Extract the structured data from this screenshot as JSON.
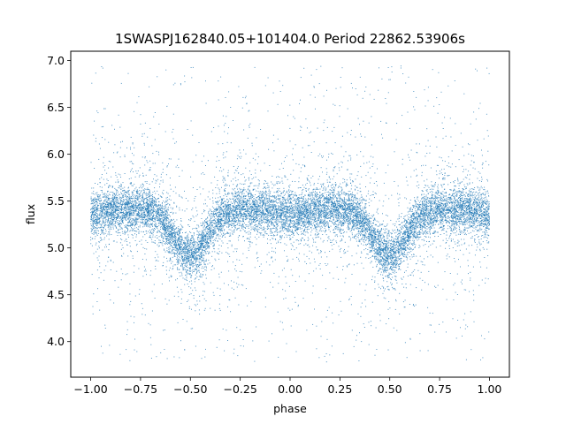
{
  "chart_data": {
    "type": "scatter",
    "title": "1SWASPJ162840.05+101404.0 Period 22862.53906s",
    "xlabel": "phase",
    "ylabel": "flux",
    "xlim": [
      -1.1,
      1.1
    ],
    "ylim": [
      3.62,
      7.1
    ],
    "grid": false,
    "legend": "none",
    "marker_color": "#1f77b4",
    "x_ticks": [
      -1.0,
      -0.75,
      -0.5,
      -0.25,
      0.0,
      0.25,
      0.5,
      0.75,
      1.0
    ],
    "x_tick_labels": [
      "−1.00",
      "−0.75",
      "−0.50",
      "−0.25",
      "0.00",
      "0.25",
      "0.50",
      "0.75",
      "1.00"
    ],
    "y_ticks": [
      4.0,
      4.5,
      5.0,
      5.5,
      6.0,
      6.5,
      7.0
    ],
    "y_tick_labels": [
      "4.0",
      "4.5",
      "5.0",
      "5.5",
      "6.0",
      "6.5",
      "7.0"
    ],
    "x_range": [
      -1.0,
      1.0
    ],
    "y_clip": [
      3.78,
      6.95
    ],
    "baseline_flux": 5.42,
    "eclipse_minima": [
      {
        "phase": -0.5,
        "flux": 4.92
      },
      {
        "phase": 0.5,
        "flux": 4.92
      }
    ],
    "secondary_dips": [
      {
        "phase": 0.0,
        "flux": 5.35
      },
      {
        "phase": -1.0,
        "flux": 5.35
      },
      {
        "phase": 1.0,
        "flux": 5.35
      }
    ]
  }
}
